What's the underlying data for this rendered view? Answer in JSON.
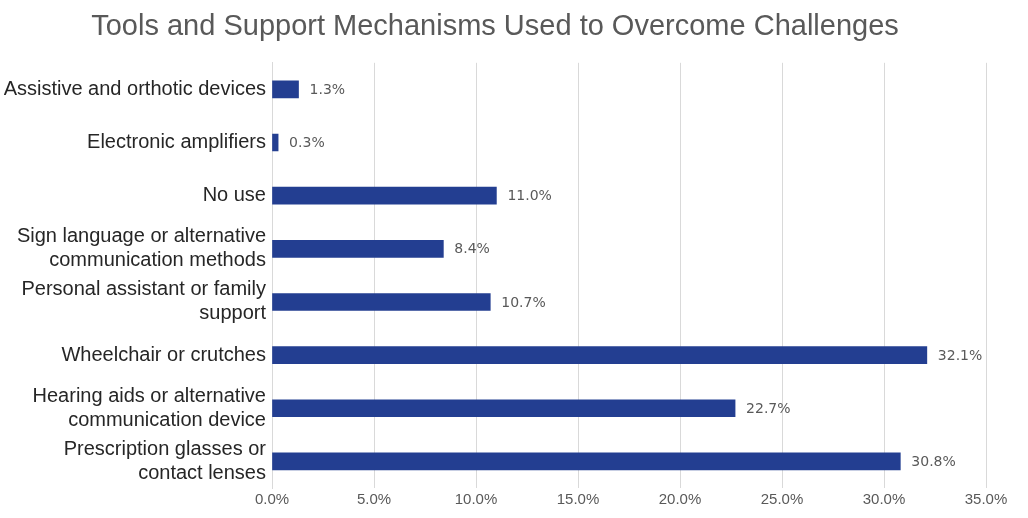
{
  "chart_data": {
    "type": "bar",
    "orientation": "horizontal",
    "title": "Tools and Support Mechanisms Used to Overcome Challenges",
    "categories": [
      "Assistive and orthotic devices",
      "Electronic amplifiers",
      "No use",
      "Sign language or alternative communication methods",
      "Personal assistant or family support",
      "Wheelchair or crutches",
      "Hearing aids or alternative communication device",
      "Prescription glasses or contact lenses"
    ],
    "values": [
      1.3,
      0.3,
      11.0,
      8.4,
      10.7,
      32.1,
      22.7,
      30.8
    ],
    "value_labels": [
      "1.3%",
      "0.3%",
      "11.0%",
      "8.4%",
      "10.7%",
      "32.1%",
      "22.7%",
      "30.8%"
    ],
    "color": "#233e91",
    "xlim": [
      0,
      35
    ],
    "xticks": [
      {
        "value": 0,
        "label": "0.0%"
      },
      {
        "value": 5,
        "label": "5.0%"
      },
      {
        "value": 10,
        "label": "10.0%"
      },
      {
        "value": 15,
        "label": "15.0%"
      },
      {
        "value": 20,
        "label": "20.0%"
      },
      {
        "value": 25,
        "label": "25.0%"
      },
      {
        "value": 30,
        "label": "30.0%"
      },
      {
        "value": 35,
        "label": "35.0%"
      }
    ],
    "grid": "x",
    "legend": false
  }
}
